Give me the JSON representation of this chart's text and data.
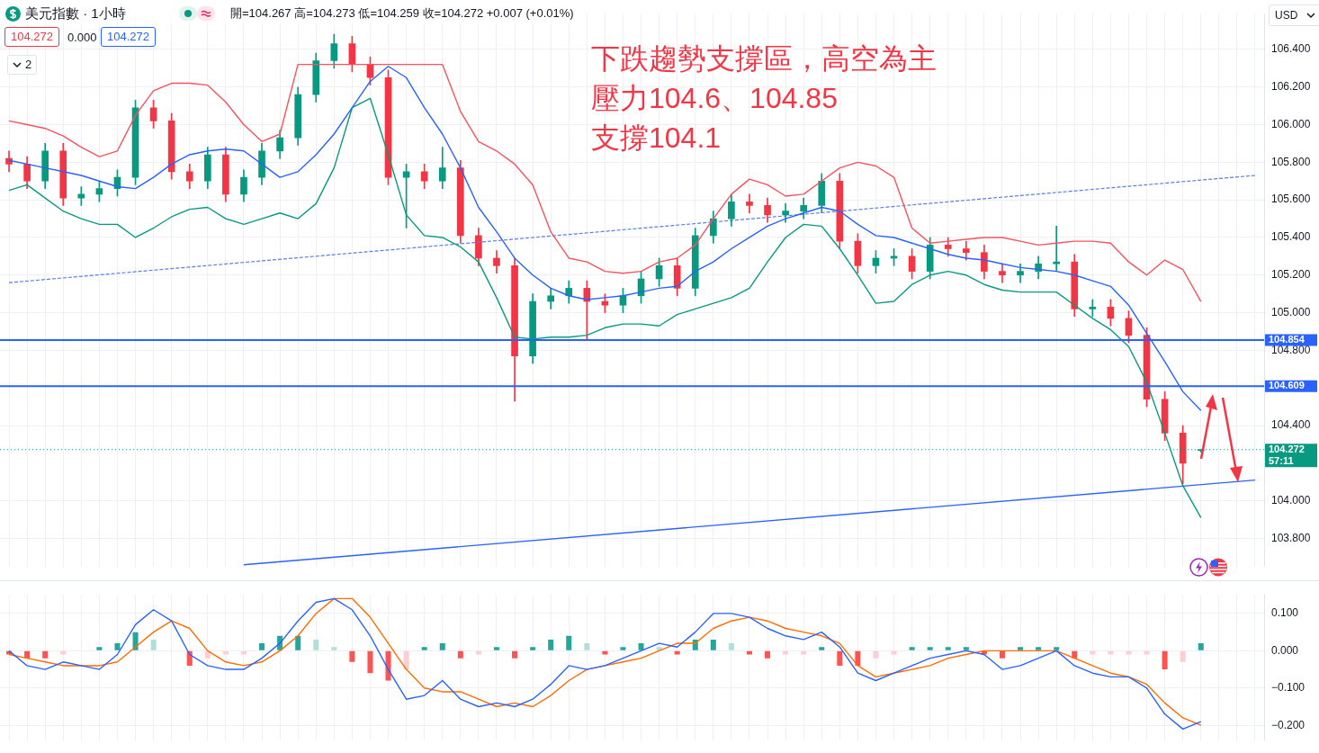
{
  "chart_data": [
    {
      "type": "candlestick",
      "title": "美元指數 · 1小時",
      "categories": [
        null,
        null,
        null,
        null,
        null,
        null,
        null,
        null,
        null,
        null,
        null,
        null,
        null,
        null,
        null,
        null,
        null,
        null,
        null,
        null,
        null,
        null,
        null,
        null,
        null,
        null,
        null,
        null,
        null,
        null,
        null,
        null,
        null,
        null,
        null,
        null,
        null,
        null,
        null,
        null,
        null,
        null,
        null,
        null,
        null,
        null,
        null,
        null,
        null,
        null,
        null,
        null,
        null,
        null,
        null,
        null,
        null,
        null,
        null,
        null,
        null,
        null,
        null,
        null,
        null,
        null,
        null,
        null,
        null,
        null
      ],
      "ohlc": [
        [
          105.82,
          105.86,
          105.75,
          105.79
        ],
        [
          105.79,
          105.83,
          105.66,
          105.7
        ],
        [
          105.7,
          105.9,
          105.66,
          105.86
        ],
        [
          105.86,
          105.9,
          105.57,
          105.61
        ],
        [
          105.61,
          105.67,
          105.57,
          105.63
        ],
        [
          105.63,
          105.7,
          105.59,
          105.66
        ],
        [
          105.66,
          105.76,
          105.62,
          105.72
        ],
        [
          105.72,
          106.13,
          105.68,
          106.09
        ],
        [
          106.09,
          106.13,
          105.98,
          106.02
        ],
        [
          106.02,
          106.06,
          105.71,
          105.75
        ],
        [
          105.75,
          105.79,
          105.66,
          105.7
        ],
        [
          105.7,
          105.88,
          105.66,
          105.84
        ],
        [
          105.84,
          105.88,
          105.59,
          105.63
        ],
        [
          105.63,
          105.76,
          105.59,
          105.72
        ],
        [
          105.72,
          105.9,
          105.68,
          105.86
        ],
        [
          105.86,
          105.97,
          105.82,
          105.93
        ],
        [
          105.93,
          106.2,
          105.89,
          106.16
        ],
        [
          106.16,
          106.38,
          106.12,
          106.34
        ],
        [
          106.34,
          106.48,
          106.3,
          106.43
        ],
        [
          106.43,
          106.47,
          106.28,
          106.32
        ],
        [
          106.32,
          106.36,
          106.21,
          106.25
        ],
        [
          106.25,
          106.29,
          105.68,
          105.72
        ],
        [
          105.72,
          105.79,
          105.45,
          105.75
        ],
        [
          105.75,
          105.79,
          105.66,
          105.7
        ],
        [
          105.7,
          105.88,
          105.66,
          105.77
        ],
        [
          105.77,
          105.81,
          105.37,
          105.41
        ],
        [
          105.41,
          105.45,
          105.25,
          105.29
        ],
        [
          105.29,
          105.33,
          105.21,
          105.25
        ],
        [
          105.25,
          105.29,
          104.53,
          104.77
        ],
        [
          104.77,
          105.1,
          104.73,
          105.06
        ],
        [
          105.06,
          105.13,
          105.02,
          105.09
        ],
        [
          105.09,
          105.17,
          105.05,
          105.13
        ],
        [
          105.13,
          105.17,
          104.86,
          105.06
        ],
        [
          105.06,
          105.1,
          105.0,
          105.04
        ],
        [
          105.04,
          105.13,
          105.0,
          105.09
        ],
        [
          105.09,
          105.22,
          105.05,
          105.18
        ],
        [
          105.18,
          105.29,
          105.14,
          105.25
        ],
        [
          105.25,
          105.29,
          105.09,
          105.13
        ],
        [
          105.13,
          105.45,
          105.09,
          105.41
        ],
        [
          105.41,
          105.54,
          105.37,
          105.5
        ],
        [
          105.5,
          105.63,
          105.46,
          105.59
        ],
        [
          105.59,
          105.63,
          105.53,
          105.57
        ],
        [
          105.57,
          105.61,
          105.48,
          105.52
        ],
        [
          105.52,
          105.58,
          105.48,
          105.54
        ],
        [
          105.54,
          105.61,
          105.5,
          105.57
        ],
        [
          105.57,
          105.74,
          105.53,
          105.7
        ],
        [
          105.7,
          105.74,
          105.34,
          105.38
        ],
        [
          105.38,
          105.42,
          105.21,
          105.25
        ],
        [
          105.25,
          105.33,
          105.21,
          105.29
        ],
        [
          105.29,
          105.34,
          105.25,
          105.3
        ],
        [
          105.3,
          105.34,
          105.18,
          105.22
        ],
        [
          105.22,
          105.4,
          105.18,
          105.36
        ],
        [
          105.36,
          105.4,
          105.3,
          105.34
        ],
        [
          105.34,
          105.38,
          105.28,
          105.32
        ],
        [
          105.32,
          105.36,
          105.18,
          105.22
        ],
        [
          105.22,
          105.26,
          105.16,
          105.2
        ],
        [
          105.2,
          105.26,
          105.16,
          105.22
        ],
        [
          105.22,
          105.3,
          105.18,
          105.26
        ],
        [
          105.26,
          105.46,
          105.22,
          105.27
        ],
        [
          105.27,
          105.31,
          104.98,
          105.02
        ],
        [
          105.02,
          105.07,
          104.98,
          105.03
        ],
        [
          105.03,
          105.07,
          104.93,
          104.97
        ],
        [
          104.97,
          105.01,
          104.84,
          104.88
        ],
        [
          104.88,
          104.92,
          104.5,
          104.54
        ],
        [
          104.54,
          104.58,
          104.32,
          104.36
        ],
        [
          104.36,
          104.4,
          104.09,
          104.2
        ],
        [
          104.267,
          104.273,
          104.259,
          104.272
        ],
        null,
        null,
        null
      ],
      "series": [
        {
          "type": "line",
          "color": "#f7525f",
          "values": [
            106.02,
            106.0,
            105.98,
            105.94,
            105.88,
            105.83,
            105.86,
            106.05,
            106.18,
            106.22,
            106.22,
            106.21,
            106.12,
            106.0,
            105.91,
            105.95,
            106.32,
            null,
            null,
            null,
            null,
            null,
            null,
            null,
            106.32,
            106.07,
            105.91,
            105.86,
            105.79,
            105.68,
            105.43,
            105.29,
            105.27,
            105.22,
            105.21,
            105.22,
            105.27,
            105.29,
            105.36,
            105.5,
            105.63,
            105.71,
            105.68,
            105.62,
            105.63,
            105.7,
            105.77,
            105.8,
            105.78,
            105.72,
            105.45,
            105.37,
            105.38,
            105.39,
            105.4,
            105.4,
            105.38,
            105.36,
            105.37,
            105.38,
            105.38,
            105.37,
            105.27,
            105.2,
            105.28,
            105.23,
            105.06,
            null,
            null,
            null
          ]
        },
        {
          "type": "line",
          "color": "#2962ff",
          "values": [
            105.81,
            105.79,
            105.77,
            105.75,
            105.73,
            105.7,
            105.67,
            105.66,
            105.72,
            105.79,
            105.84,
            105.86,
            105.87,
            105.86,
            105.79,
            105.72,
            105.75,
            105.84,
            105.95,
            106.09,
            106.23,
            106.31,
            106.25,
            106.09,
            105.95,
            105.77,
            105.56,
            105.43,
            105.29,
            105.2,
            105.13,
            105.09,
            105.07,
            105.08,
            105.09,
            105.11,
            105.13,
            105.14,
            105.22,
            105.27,
            105.34,
            105.4,
            105.46,
            105.5,
            105.53,
            105.56,
            105.54,
            105.47,
            105.41,
            105.4,
            105.37,
            105.34,
            105.31,
            105.29,
            105.28,
            105.26,
            105.24,
            105.23,
            105.22,
            105.2,
            105.17,
            105.14,
            105.04,
            104.89,
            104.74,
            104.58,
            104.48,
            null,
            null,
            null
          ]
        },
        {
          "type": "line",
          "color": "#089981",
          "values": [
            105.65,
            105.68,
            105.61,
            105.54,
            105.5,
            105.47,
            105.47,
            105.4,
            105.45,
            105.51,
            105.55,
            105.56,
            105.5,
            105.47,
            105.5,
            105.53,
            105.5,
            105.58,
            105.77,
            106.09,
            106.14,
            105.84,
            105.52,
            105.41,
            105.4,
            105.35,
            105.27,
            105.08,
            104.87,
            104.86,
            104.87,
            104.87,
            104.88,
            104.92,
            104.94,
            104.94,
            104.93,
            104.99,
            105.02,
            105.05,
            105.08,
            105.13,
            105.27,
            105.4,
            105.47,
            105.46,
            105.34,
            105.2,
            105.05,
            105.06,
            105.15,
            105.2,
            105.22,
            105.2,
            105.15,
            105.12,
            105.11,
            105.11,
            105.11,
            105.04,
            104.97,
            104.91,
            104.82,
            104.63,
            104.36,
            104.08,
            103.91,
            null,
            null,
            null
          ]
        },
        {
          "type": "line",
          "color": "#5b7fde",
          "line_style": "dashed",
          "values": [
            105.16,
            null,
            null,
            null,
            null,
            null,
            null,
            null,
            null,
            null,
            null,
            null,
            null,
            null,
            null,
            null,
            null,
            null,
            null,
            null,
            null,
            null,
            null,
            null,
            null,
            null,
            null,
            null,
            null,
            null,
            null,
            null,
            null,
            null,
            null,
            null,
            null,
            null,
            null,
            null,
            null,
            null,
            null,
            null,
            null,
            null,
            null,
            null,
            null,
            null,
            null,
            null,
            null,
            null,
            null,
            null,
            null,
            null,
            null,
            null,
            null,
            null,
            null,
            null,
            null,
            null,
            null,
            null,
            null,
            105.73
          ]
        },
        {
          "type": "line",
          "color": "#2962ff",
          "values": [
            null,
            null,
            null,
            null,
            null,
            null,
            null,
            null,
            null,
            null,
            null,
            null,
            null,
            103.66,
            null,
            null,
            null,
            null,
            null,
            null,
            null,
            null,
            null,
            null,
            null,
            null,
            null,
            null,
            null,
            null,
            null,
            null,
            null,
            null,
            null,
            null,
            null,
            null,
            null,
            null,
            null,
            null,
            null,
            null,
            null,
            null,
            null,
            null,
            null,
            null,
            null,
            null,
            null,
            null,
            null,
            null,
            null,
            null,
            null,
            null,
            null,
            null,
            null,
            null,
            null,
            null,
            null,
            null,
            null,
            104.11
          ]
        }
      ],
      "ylim": [
        103.65,
        106.59
      ],
      "yticks": [
        {
          "value": 103.8,
          "label": "103.800"
        },
        {
          "value": 104,
          "label": "104.000"
        },
        {
          "value": 104.4,
          "label": "104.400"
        },
        {
          "value": 104.6,
          "label": null
        },
        {
          "value": 104.8,
          "label": "104.800"
        },
        {
          "value": 105,
          "label": "105.000"
        },
        {
          "value": 105.2,
          "label": "105.200"
        },
        {
          "value": 105.4,
          "label": "105.400"
        },
        {
          "value": 105.6,
          "label": "105.600"
        },
        {
          "value": 105.8,
          "label": "105.800"
        },
        {
          "value": 106,
          "label": "106.000"
        },
        {
          "value": 106.2,
          "label": "106.200"
        },
        {
          "value": 106.4,
          "label": "106.400"
        }
      ],
      "ref_lines": [
        {
          "axis": "y",
          "value": 104.854,
          "label": "104.854",
          "color": "#2962ff"
        },
        {
          "axis": "y",
          "value": 104.609,
          "label": "104.609",
          "color": "#2962ff"
        },
        {
          "axis": "y",
          "value": 104.272,
          "label": "104.272\n57:11",
          "color": "#089981",
          "line_style": "dotted"
        }
      ],
      "annotations": [
        "開=104.267 高=104.273 低=104.259 收=104.272 +0.007 (+0.01%)",
        "104.272",
        "0.000",
        "104.272",
        "2",
        "USD",
        "下跌趨勢支撐區，高空為主",
        "壓力104.6、104.85",
        "支撐104.1"
      ],
      "grid": true,
      "tick_labels": "y"
    },
    {
      "type": "bar",
      "categories": [
        null,
        null,
        null,
        null,
        null,
        null,
        null,
        null,
        null,
        null,
        null,
        null,
        null,
        null,
        null,
        null,
        null,
        null,
        null,
        null,
        null,
        null,
        null,
        null,
        null,
        null,
        null,
        null,
        null,
        null,
        null,
        null,
        null,
        null,
        null,
        null,
        null,
        null,
        null,
        null,
        null,
        null,
        null,
        null,
        null,
        null,
        null,
        null,
        null,
        null,
        null,
        null,
        null,
        null,
        null,
        null,
        null,
        null,
        null,
        null,
        null,
        null,
        null,
        null,
        null,
        null,
        null,
        null,
        null,
        null
      ],
      "series": [
        {
          "type": "bar",
          "values": [
            -0.01,
            -0.02,
            -0.02,
            -0.01,
            0.0,
            0.01,
            0.02,
            0.05,
            0.03,
            0.0,
            -0.04,
            -0.02,
            -0.01,
            -0.01,
            0.02,
            0.04,
            0.04,
            0.03,
            0.01,
            -0.03,
            -0.06,
            -0.08,
            -0.05,
            0.01,
            0.02,
            -0.02,
            -0.01,
            0.01,
            -0.02,
            0.01,
            0.03,
            0.04,
            0.02,
            -0.01,
            0.01,
            0.02,
            0.01,
            -0.01,
            0.03,
            0.03,
            0.02,
            -0.01,
            -0.02,
            -0.01,
            -0.01,
            0.01,
            -0.04,
            -0.04,
            -0.02,
            -0.01,
            0.01,
            0.01,
            0.01,
            0.01,
            -0.01,
            -0.02,
            0.01,
            0.01,
            0.01,
            -0.02,
            -0.01,
            -0.01,
            -0.01,
            -0.01,
            -0.05,
            -0.03,
            0.02,
            null,
            null,
            null
          ],
          "colors": [
            "#ff5252",
            "#ff5252",
            "#ff5252",
            "#ffcdd2",
            "#26a69a",
            "#26a69a",
            "#26a69a",
            "#26a69a",
            "#b2dfdb",
            "#b2dfdb",
            "#ff5252",
            "#ffcdd2",
            "#ffcdd2",
            "#ffcdd2",
            "#26a69a",
            "#26a69a",
            "#26a69a",
            "#b2dfdb",
            "#b2dfdb",
            "#ff5252",
            "#ff5252",
            "#ff5252",
            "#ffcdd2",
            "#26a69a",
            "#26a69a",
            "#ff5252",
            "#ffcdd2",
            "#26a69a",
            "#ff5252",
            "#26a69a",
            "#26a69a",
            "#26a69a",
            "#b2dfdb",
            "#ff5252",
            "#26a69a",
            "#26a69a",
            "#b2dfdb",
            "#ff5252",
            "#26a69a",
            "#26a69a",
            "#b2dfdb",
            "#ff5252",
            "#ff5252",
            "#ffcdd2",
            "#ffcdd2",
            "#26a69a",
            "#ff5252",
            "#ff5252",
            "#ffcdd2",
            "#ffcdd2",
            "#26a69a",
            "#26a69a",
            "#26a69a",
            "#26a69a",
            "#ff5252",
            "#ff5252",
            "#26a69a",
            "#26a69a",
            "#26a69a",
            "#ff5252",
            "#ffcdd2",
            "#ffcdd2",
            "#ffcdd2",
            "#ffcdd2",
            "#ff5252",
            "#ffcdd2",
            "#26a69a",
            null,
            null,
            null
          ]
        },
        {
          "type": "line",
          "color": "#2962ff",
          "values": [
            0.0,
            -0.04,
            -0.05,
            -0.03,
            -0.04,
            -0.05,
            -0.01,
            0.07,
            0.11,
            0.08,
            -0.01,
            -0.04,
            -0.05,
            -0.05,
            -0.02,
            0.02,
            0.08,
            0.13,
            0.14,
            0.11,
            0.04,
            -0.05,
            -0.13,
            -0.12,
            -0.08,
            -0.13,
            -0.15,
            -0.14,
            -0.15,
            -0.13,
            -0.09,
            -0.04,
            -0.05,
            -0.04,
            -0.02,
            0.0,
            0.02,
            0.01,
            0.05,
            0.1,
            0.1,
            0.09,
            0.06,
            0.04,
            0.03,
            0.05,
            0.01,
            -0.06,
            -0.08,
            -0.06,
            -0.04,
            -0.02,
            -0.01,
            0.0,
            -0.01,
            -0.05,
            -0.04,
            -0.02,
            0.0,
            -0.04,
            -0.06,
            -0.07,
            -0.07,
            -0.1,
            -0.17,
            -0.21,
            -0.19,
            null,
            null,
            null
          ]
        },
        {
          "type": "line",
          "color": "#ff6d00",
          "values": [
            -0.01,
            -0.02,
            -0.03,
            -0.04,
            -0.04,
            -0.04,
            -0.03,
            0.01,
            0.05,
            0.08,
            0.06,
            0.0,
            -0.03,
            -0.04,
            -0.03,
            0.0,
            0.04,
            0.1,
            0.14,
            0.14,
            0.09,
            0.02,
            -0.05,
            -0.1,
            -0.11,
            -0.11,
            -0.13,
            -0.15,
            -0.14,
            -0.15,
            -0.12,
            -0.08,
            -0.05,
            -0.04,
            -0.03,
            -0.02,
            0.0,
            0.02,
            0.02,
            0.06,
            0.08,
            0.09,
            0.08,
            0.06,
            0.05,
            0.04,
            0.02,
            -0.04,
            -0.07,
            -0.06,
            -0.05,
            -0.04,
            -0.02,
            -0.01,
            0.0,
            0.0,
            0.0,
            0.0,
            0.0,
            -0.02,
            -0.04,
            -0.06,
            -0.07,
            -0.09,
            -0.14,
            -0.18,
            -0.2,
            null,
            null,
            null
          ]
        }
      ],
      "ylim": [
        -0.24,
        0.15
      ],
      "yticks": [
        {
          "value": 0.1,
          "label": "0.100"
        },
        {
          "value": 0,
          "label": "0.000"
        },
        {
          "value": -0.1,
          "label": "−0.100"
        },
        {
          "value": -0.2,
          "label": "−0.200"
        }
      ],
      "grid": true,
      "tick_labels": "y"
    }
  ]
}
